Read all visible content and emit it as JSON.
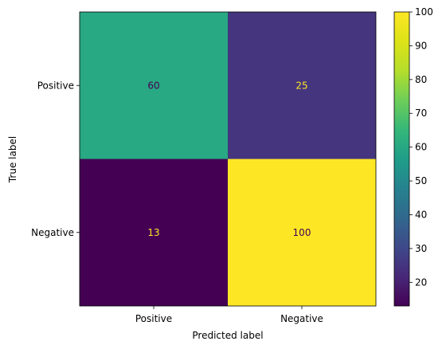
{
  "chart_data": {
    "type": "heatmap",
    "xlabel": "Predicted label",
    "ylabel": "True label",
    "x_categories": [
      "Positive",
      "Negative"
    ],
    "y_categories": [
      "Positive",
      "Negative"
    ],
    "values": [
      [
        60,
        25
      ],
      [
        13,
        100
      ]
    ],
    "colormap": "viridis",
    "colorbar": {
      "min": 13,
      "max": 100,
      "ticks": [
        20,
        30,
        40,
        50,
        60,
        70,
        80,
        90,
        100
      ]
    },
    "grid": false
  }
}
